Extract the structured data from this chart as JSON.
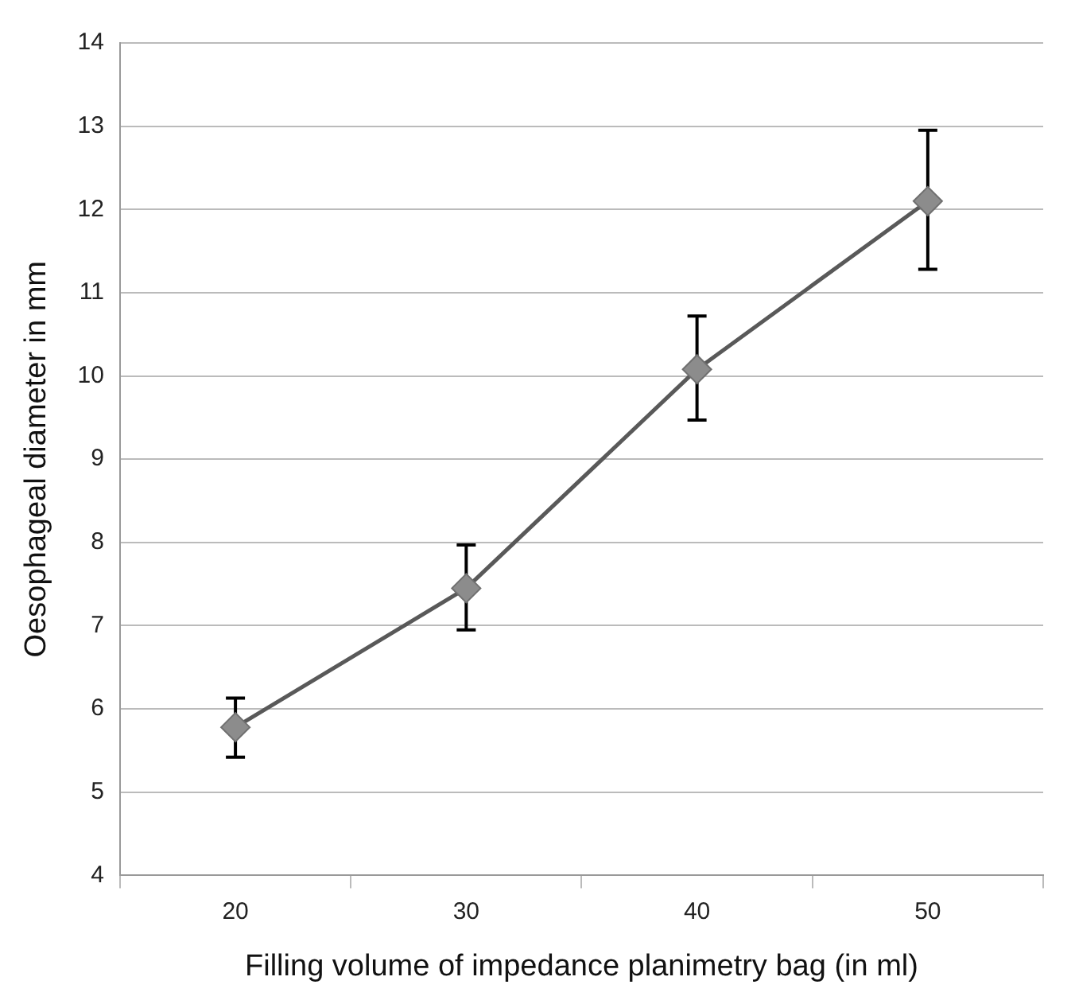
{
  "chart_data": {
    "type": "line",
    "xlabel": "Filling volume of impedance planimetry bag (in ml)",
    "ylabel": "Oesophageal diameter in mm",
    "categories": [
      "20",
      "30",
      "40",
      "50"
    ],
    "series": [
      {
        "color": "#8c8c8c",
        "values": [
          5.78,
          7.45,
          10.08,
          12.1
        ],
        "errors": [
          [
            5.42,
            6.13
          ],
          [
            6.95,
            7.97
          ],
          [
            9.47,
            10.72
          ],
          [
            11.28,
            12.95
          ]
        ]
      }
    ],
    "ylim": [
      4,
      14
    ],
    "yticks": [
      4,
      5,
      6,
      7,
      8,
      9,
      10,
      11,
      12,
      13,
      14
    ],
    "grid": "y",
    "legend": false,
    "marker": "diamond",
    "line_style": "solid"
  }
}
